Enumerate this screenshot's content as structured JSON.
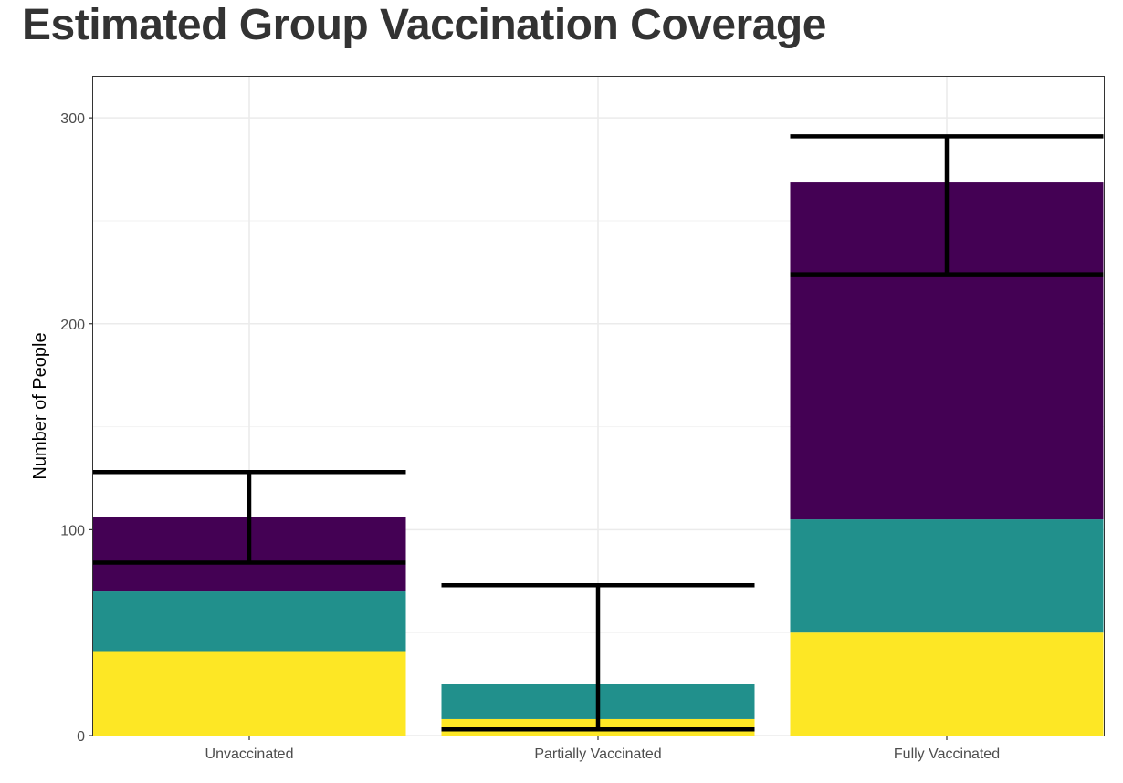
{
  "chart_data": {
    "type": "bar",
    "stacked": true,
    "title": "Estimated Group Vaccination Coverage",
    "xlabel": "",
    "ylabel": "Number of People",
    "categories": [
      "Unvaccinated",
      "Partially Vaccinated",
      "Fully Vaccinated"
    ],
    "ylim": [
      0,
      320
    ],
    "yticks": [
      0,
      100,
      200,
      300
    ],
    "grid": true,
    "legend": "none",
    "series": [
      {
        "color": "#FDE725",
        "values": [
          41,
          8,
          50
        ]
      },
      {
        "color": "#21908C",
        "values": [
          29,
          17,
          55
        ]
      },
      {
        "color": "#440154",
        "values": [
          36,
          0,
          164
        ]
      }
    ],
    "error_bars": [
      {
        "category": "Unvaccinated",
        "low": 84,
        "high": 128
      },
      {
        "category": "Partially Vaccinated",
        "low": 3,
        "high": 73
      },
      {
        "category": "Fully Vaccinated",
        "low": 224,
        "high": 291
      }
    ]
  }
}
